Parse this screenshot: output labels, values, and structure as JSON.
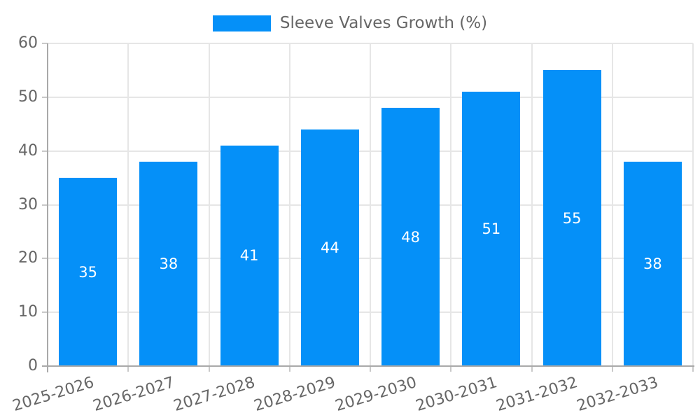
{
  "legend": {
    "label": "Sleeve Valves Growth (%)"
  },
  "chart_data": {
    "type": "bar",
    "title": "Sleeve Valves Growth (%)",
    "series_name": "Sleeve Valves Growth (%)",
    "categories": [
      "2025-2026",
      "2026-2027",
      "2027-2028",
      "2028-2029",
      "2029-2030",
      "2030-2031",
      "2031-2032",
      "2032-2033"
    ],
    "values": [
      35,
      38,
      41,
      44,
      48,
      51,
      55,
      38
    ],
    "xlabel": "",
    "ylabel": "",
    "ylim": [
      0,
      60
    ],
    "yticks": [
      0,
      10,
      20,
      30,
      40,
      50,
      60
    ],
    "grid": true,
    "legend_position": "top-center",
    "data_labels": "inside-center",
    "colors": {
      "bar": "#0590f8",
      "bar_value_label": "#ffffff",
      "grid": "#e6e6e6",
      "axis": "#a9a9a9",
      "tick_mark": "#c9c9c9",
      "tick_text": "#666666"
    }
  }
}
